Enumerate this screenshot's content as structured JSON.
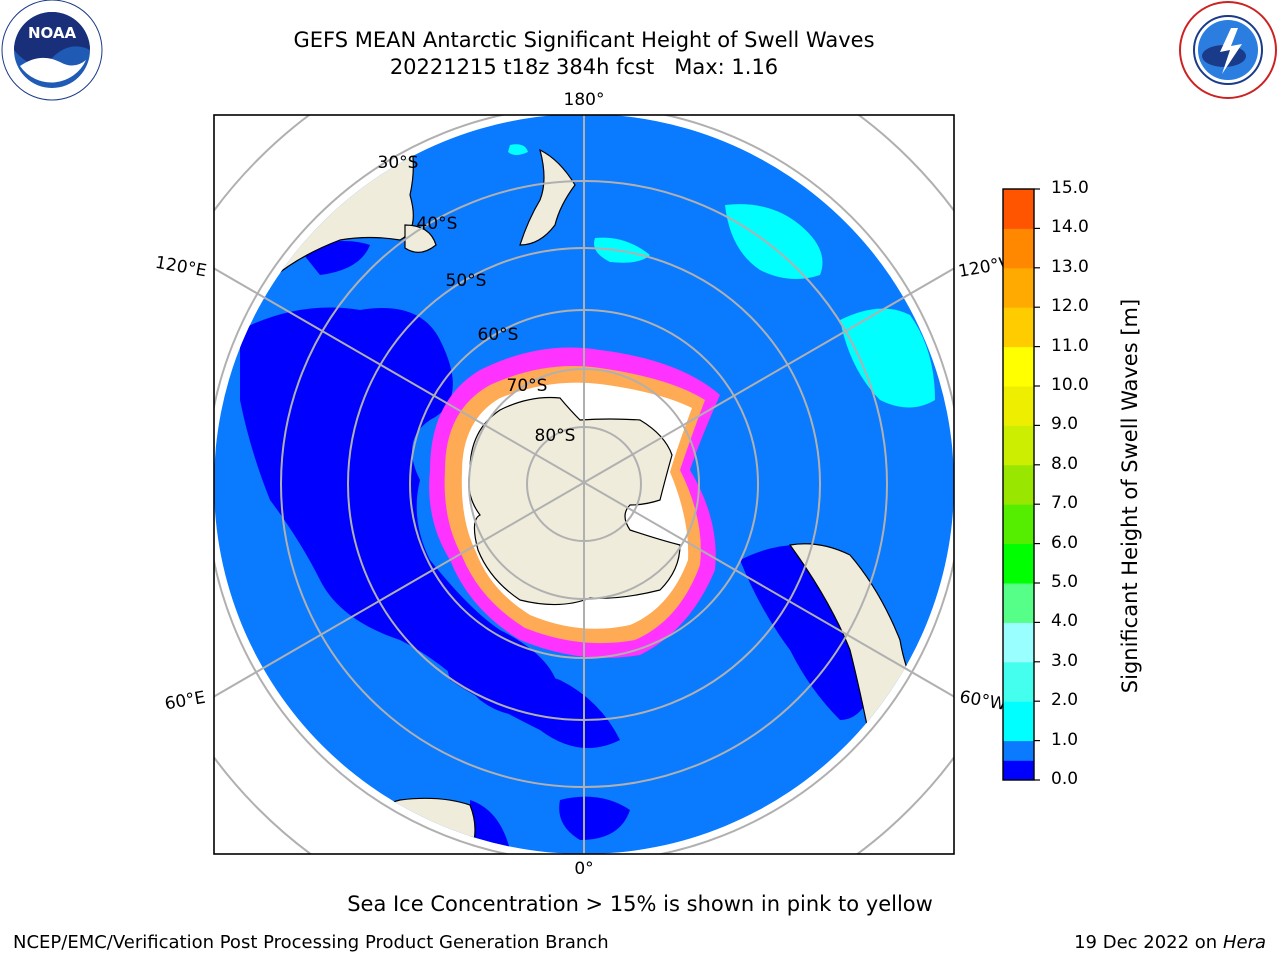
{
  "title": {
    "line1": "GEFS MEAN Antarctic Significant Height of Swell Waves",
    "line2": "20221215 t18z 384h fcst   Max: 1.16"
  },
  "logos": {
    "noara_name": "NOAA",
    "noaa_ring": "NATIONAL OCEANIC AND ATMOSPHERIC ADMINISTRATION • U.S. DEPARTMENT OF COMMERCE",
    "nws_ring": "NATIONAL WEATHER SERVICE"
  },
  "map": {
    "projection": "south-polar-stereographic",
    "longitude_labels": [
      "180°",
      "120°E",
      "120°W",
      "60°E",
      "60°W",
      "0°"
    ],
    "latitude_labels": [
      "30°S",
      "40°S",
      "50°S",
      "60°S",
      "70°S",
      "80°S"
    ],
    "colors": {
      "land": "#efecdc",
      "swell_0_0.5": "#0000ff",
      "swell_0.5_1.0": "#0a7aff",
      "swell_1.0_1.5": "#00ffff",
      "ice_low": "#ff33ff",
      "ice_mid": "#ffaa55",
      "ice_high": "#ffffff",
      "grid": "#b0b0b0"
    }
  },
  "colorbar": {
    "label": "Significant Height of Swell Waves [m]",
    "ticks": [
      "0.0",
      "0.5",
      "1.0",
      "1.5",
      "2.0",
      "2.5",
      "3.0",
      "3.5",
      "4.0",
      "4.5",
      "5.0",
      "5.5",
      "6.0",
      "6.5",
      "7.0",
      "7.5",
      "8.0",
      "8.5",
      "9.0",
      "9.5",
      "10.0",
      "10.5",
      "11.0",
      "11.5",
      "12.0",
      "12.5",
      "13.0",
      "13.5",
      "14.0",
      "14.5",
      "15.0"
    ],
    "colors": [
      "#0000ff",
      "#0a7aff",
      "#00ffff",
      "#44ffee",
      "#99ffff",
      "#55ff88",
      "#00ff00",
      "#55ee00",
      "#99e600",
      "#ccee00",
      "#eeee00",
      "#ffff00",
      "#ffcc00",
      "#ffaa00",
      "#ff8800",
      "#ff5500",
      "#ff2200"
    ]
  },
  "footer": {
    "note": "Sea Ice Concentration > 15% is shown in pink to yellow",
    "credit": "NCEP/EMC/Verification Post Processing Product Generation Branch",
    "date": "19 Dec 2022 on",
    "host": "Hera"
  }
}
